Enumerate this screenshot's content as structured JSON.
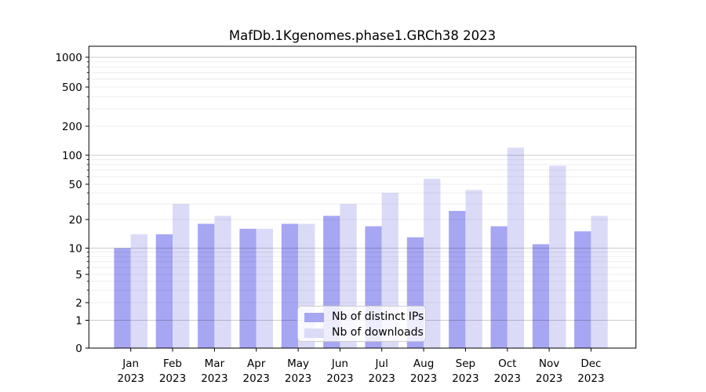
{
  "chart_data": {
    "type": "bar",
    "title": "MafDb.1Kgenomes.phase1.GRCh38 2023",
    "categories": [
      "Jan",
      "Feb",
      "Mar",
      "Apr",
      "May",
      "Jun",
      "Jul",
      "Aug",
      "Sep",
      "Oct",
      "Nov",
      "Dec"
    ],
    "x_year_label": "2023",
    "series": [
      {
        "name": "Nb of distinct IPs",
        "color": "#a6a6f2",
        "values": [
          10,
          14,
          18,
          16,
          18,
          22,
          17,
          13,
          25,
          17,
          11,
          15
        ]
      },
      {
        "name": "Nb of downloads",
        "color": "#dbdbf8",
        "values": [
          14,
          30,
          22,
          16,
          18,
          30,
          40,
          57,
          43,
          120,
          78,
          22
        ]
      }
    ],
    "yticks": [
      0,
      1,
      2,
      5,
      10,
      20,
      50,
      100,
      200,
      500,
      1000
    ],
    "yscale": "symlog",
    "ylim": [
      0,
      1500
    ],
    "xlabel": "",
    "ylabel": "",
    "grid": true,
    "legend_position": "lower center",
    "grid_major_color": "#cccccc",
    "grid_minor_color": "#ececec",
    "axis_color": "#000000"
  }
}
